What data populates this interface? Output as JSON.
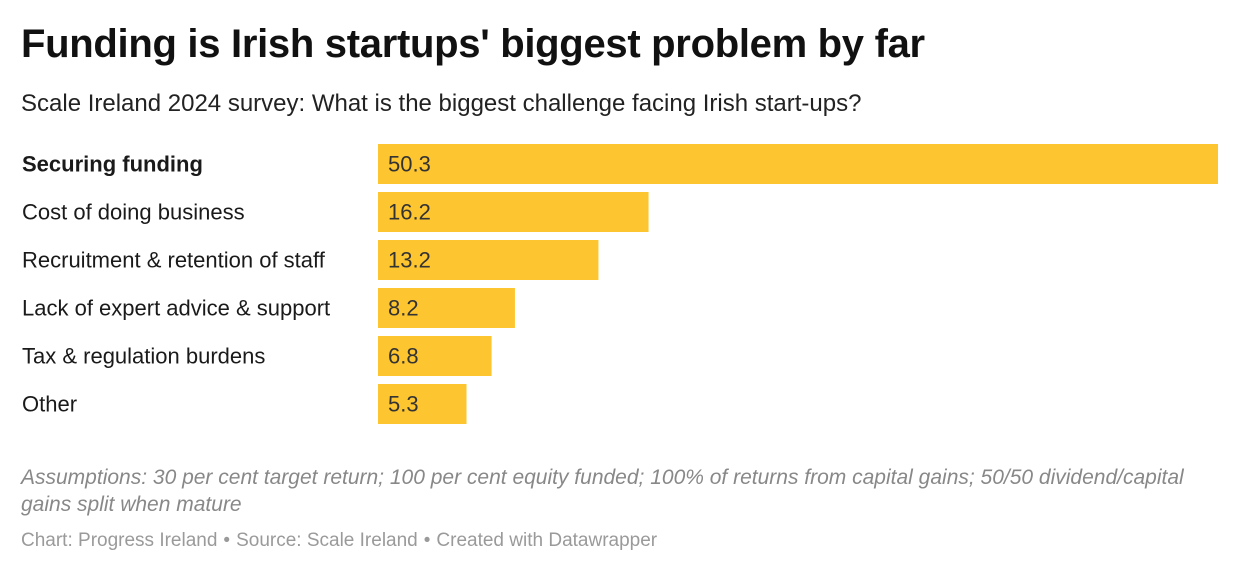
{
  "title": "Funding is Irish startups' biggest problem by far",
  "subtitle": "Scale Ireland 2024 survey: What is the biggest challenge facing Irish start-ups?",
  "notes": "Assumptions: 30 per cent target return; 100 per cent equity funded; 100% of returns from capital gains; 50/50 dividend/capital gains split when mature",
  "footer": {
    "chart": "Chart: Progress Ireland",
    "source": "Source: Scale Ireland",
    "created": "Created with Datawrapper",
    "separator": "•"
  },
  "colors": {
    "bar": "#fdc530",
    "label": "#1a1a1a",
    "value": "#333333"
  },
  "chart_data": {
    "type": "bar",
    "orientation": "horizontal",
    "categories": [
      "Securing funding",
      "Cost of doing business",
      "Recruitment & retention of staff",
      "Lack of expert advice & support",
      "Tax & regulation burdens",
      "Other"
    ],
    "values": [
      50.3,
      16.2,
      13.2,
      8.2,
      6.8,
      5.3
    ],
    "highlighted": [
      "Securing funding"
    ],
    "xlim": [
      0,
      50.3
    ],
    "grid": false,
    "value_labels": "inside-left"
  }
}
